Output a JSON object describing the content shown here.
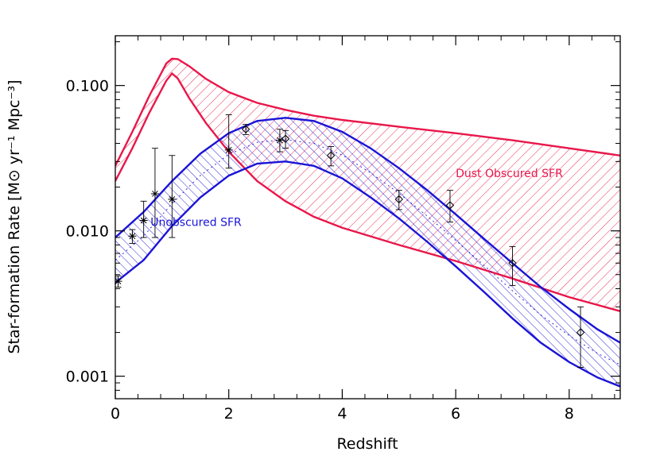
{
  "chart_data": {
    "type": "line",
    "xlabel": "Redshift",
    "ylabel": "Star-formation Rate [M⊙ yr⁻¹ Mpc⁻³]",
    "xlim": [
      0,
      8.9
    ],
    "ylim": [
      0.0007,
      0.22
    ],
    "yscale": "log",
    "grid": false,
    "xticks": [
      0,
      2,
      4,
      6,
      8
    ],
    "xtick_labels": [
      "0",
      "2",
      "4",
      "6",
      "8"
    ],
    "yticks": [
      0.001,
      0.01,
      0.1
    ],
    "ytick_labels": [
      "0.001",
      "0.010",
      "0.100"
    ],
    "colors": {
      "obscured": "#e8174a",
      "unobscured": "#1a14d6",
      "points": "#000000"
    },
    "bands": [
      {
        "label": "Dust Obscured SFR",
        "color": "#e8174a",
        "upper": {
          "x": [
            0,
            0.3,
            0.6,
            0.9,
            1.0,
            1.1,
            1.3,
            1.6,
            2.0,
            2.5,
            3.0,
            3.5,
            4.0,
            5.0,
            6.0,
            7.0,
            8.0,
            8.9
          ],
          "y": [
            0.028,
            0.048,
            0.085,
            0.142,
            0.153,
            0.152,
            0.136,
            0.111,
            0.09,
            0.076,
            0.068,
            0.062,
            0.058,
            0.052,
            0.047,
            0.042,
            0.037,
            0.033
          ]
        },
        "lower": {
          "x": [
            0,
            0.3,
            0.6,
            0.9,
            1.0,
            1.1,
            1.3,
            1.6,
            2.0,
            2.5,
            3.0,
            3.5,
            4.0,
            5.0,
            6.0,
            7.0,
            8.0,
            8.9
          ],
          "y": [
            0.022,
            0.037,
            0.065,
            0.108,
            0.121,
            0.112,
            0.082,
            0.055,
            0.035,
            0.022,
            0.016,
            0.0125,
            0.0105,
            0.008,
            0.0062,
            0.0047,
            0.0035,
            0.0028
          ]
        }
      },
      {
        "label": "Unobscured SFR",
        "color": "#1a14d6",
        "upper": {
          "x": [
            0,
            0.5,
            1.0,
            1.5,
            2.0,
            2.5,
            3.0,
            3.5,
            4.0,
            4.5,
            5.0,
            5.5,
            6.0,
            6.5,
            7.0,
            7.5,
            8.0,
            8.5,
            8.9
          ],
          "y": [
            0.009,
            0.0135,
            0.022,
            0.034,
            0.047,
            0.057,
            0.06,
            0.057,
            0.048,
            0.037,
            0.027,
            0.019,
            0.013,
            0.0088,
            0.006,
            0.0041,
            0.0029,
            0.0021,
            0.0017
          ]
        },
        "lower": {
          "x": [
            0,
            0.5,
            1.0,
            1.5,
            2.0,
            2.5,
            3.0,
            3.5,
            4.0,
            4.5,
            5.0,
            5.5,
            6.0,
            6.5,
            7.0,
            7.5,
            8.0,
            8.5,
            8.9
          ],
          "y": [
            0.0044,
            0.0063,
            0.0108,
            0.017,
            0.024,
            0.029,
            0.03,
            0.028,
            0.023,
            0.017,
            0.0122,
            0.0084,
            0.0057,
            0.0038,
            0.0025,
            0.0017,
            0.00125,
            0.00098,
            0.00085
          ]
        }
      }
    ],
    "points": [
      {
        "x": 0.05,
        "y": 0.0045,
        "ylo": 0.0041,
        "yhi": 0.0049,
        "marker": "star"
      },
      {
        "x": 0.3,
        "y": 0.0092,
        "ylo": 0.0082,
        "yhi": 0.0102,
        "marker": "star"
      },
      {
        "x": 0.5,
        "y": 0.0118,
        "ylo": 0.009,
        "yhi": 0.016,
        "marker": "star"
      },
      {
        "x": 0.7,
        "y": 0.018,
        "ylo": 0.009,
        "yhi": 0.037,
        "marker": "star"
      },
      {
        "x": 1.0,
        "y": 0.0165,
        "ylo": 0.009,
        "yhi": 0.033,
        "marker": "star"
      },
      {
        "x": 2.0,
        "y": 0.036,
        "ylo": 0.027,
        "yhi": 0.063,
        "marker": "star"
      },
      {
        "x": 2.3,
        "y": 0.05,
        "ylo": 0.046,
        "yhi": 0.054,
        "marker": "diamond"
      },
      {
        "x": 2.9,
        "y": 0.042,
        "ylo": 0.035,
        "yhi": 0.05,
        "marker": "star"
      },
      {
        "x": 3.0,
        "y": 0.043,
        "ylo": 0.037,
        "yhi": 0.049,
        "marker": "diamond"
      },
      {
        "x": 3.8,
        "y": 0.033,
        "ylo": 0.028,
        "yhi": 0.038,
        "marker": "diamond"
      },
      {
        "x": 5.0,
        "y": 0.0165,
        "ylo": 0.014,
        "yhi": 0.019,
        "marker": "diamond"
      },
      {
        "x": 5.9,
        "y": 0.015,
        "ylo": 0.0115,
        "yhi": 0.019,
        "marker": "diamond"
      },
      {
        "x": 7.0,
        "y": 0.006,
        "ylo": 0.0042,
        "yhi": 0.0078,
        "marker": "diamond"
      },
      {
        "x": 8.2,
        "y": 0.002,
        "ylo": 0.00115,
        "yhi": 0.003,
        "marker": "diamond"
      }
    ],
    "annotations": [
      {
        "text": "Dust Obscured SFR",
        "x": 6.0,
        "y": 0.0235,
        "color": "#e8174a"
      },
      {
        "text": "Unobscured SFR",
        "x": 0.62,
        "y": 0.0108,
        "color": "#1a14d6"
      }
    ]
  }
}
